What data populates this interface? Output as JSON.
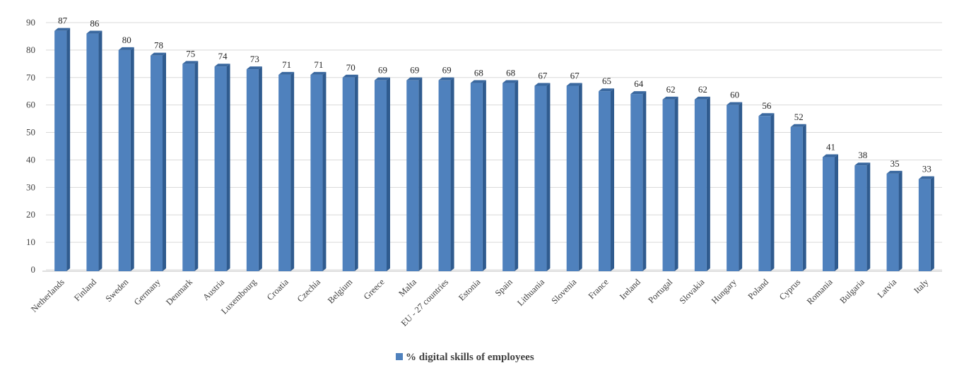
{
  "chart_data": {
    "type": "bar",
    "title": "",
    "xlabel": "",
    "ylabel": "",
    "ylim": [
      0,
      90
    ],
    "yticks": [
      0,
      10,
      20,
      30,
      40,
      50,
      60,
      70,
      80,
      90
    ],
    "grid": true,
    "legend_position": "bottom",
    "categories": [
      "Netherlands",
      "Finland",
      "Sweden",
      "Germany",
      "Denmark",
      "Austria",
      "Luxembourg",
      "Croatia",
      "Czechia",
      "Belgium",
      "Greece",
      "Malta",
      "EU - 27 countries",
      "Estonia",
      "Spain",
      "Lithuania",
      "Slovenia",
      "France",
      "Ireland",
      "Portugal",
      "Slovakia",
      "Hungary",
      "Poland",
      "Cyprus",
      "Romania",
      "Bulgaria",
      "Latvia",
      "Italy"
    ],
    "series": [
      {
        "name": "% digital skills of employees",
        "values": [
          87,
          86,
          80,
          78,
          75,
          74,
          73,
          71,
          71,
          70,
          69,
          69,
          69,
          68,
          68,
          67,
          67,
          65,
          64,
          62,
          62,
          60,
          56,
          52,
          41,
          38,
          35,
          33
        ]
      }
    ],
    "colors": {
      "bar_front": "#4f81bd",
      "bar_side": "#2f5b8f",
      "bar_top": "#3a689f",
      "grid": "#d9d9d9"
    }
  }
}
